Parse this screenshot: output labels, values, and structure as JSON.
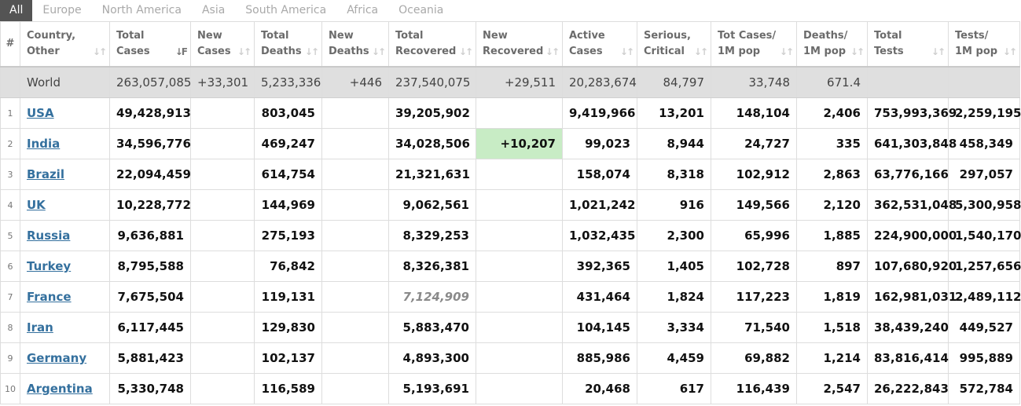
{
  "tabs": [
    "All",
    "Europe",
    "North America",
    "Asia",
    "South America",
    "Africa",
    "Oceania"
  ],
  "headers": [
    {
      "l1": "#",
      "l2": ""
    },
    {
      "l1": "Country,",
      "l2": "Other"
    },
    {
      "l1": "Total",
      "l2": "Cases"
    },
    {
      "l1": "New",
      "l2": "Cases"
    },
    {
      "l1": "Total",
      "l2": "Deaths"
    },
    {
      "l1": "New",
      "l2": "Deaths"
    },
    {
      "l1": "Total",
      "l2": "Recovered"
    },
    {
      "l1": "New",
      "l2": "Recovered"
    },
    {
      "l1": "Active",
      "l2": "Cases"
    },
    {
      "l1": "Serious,",
      "l2": "Critical"
    },
    {
      "l1": "Tot Cases/",
      "l2": "1M pop"
    },
    {
      "l1": "Deaths/",
      "l2": "1M pop"
    },
    {
      "l1": "Total",
      "l2": "Tests"
    },
    {
      "l1": "Tests/",
      "l2": "1M pop"
    }
  ],
  "world": {
    "country": "World",
    "total_cases": "263,057,085",
    "new_cases": "+33,301",
    "total_deaths": "5,233,336",
    "new_deaths": "+446",
    "total_recovered": "237,540,075",
    "new_recovered": "+29,511",
    "active_cases": "20,283,674",
    "serious_critical": "84,797",
    "cases_per_1m": "33,748",
    "deaths_per_1m": "671.4",
    "total_tests": "",
    "tests_per_1m": ""
  },
  "rows": [
    {
      "idx": "1",
      "country": "USA",
      "total_cases": "49,428,913",
      "new_cases": "",
      "total_deaths": "803,045",
      "new_deaths": "",
      "total_recovered": "39,205,902",
      "new_recovered": "",
      "active_cases": "9,419,966",
      "serious_critical": "13,201",
      "cases_per_1m": "148,104",
      "deaths_per_1m": "2,406",
      "total_tests": "753,993,369",
      "tests_per_1m": "2,259,195"
    },
    {
      "idx": "2",
      "country": "India",
      "total_cases": "34,596,776",
      "new_cases": "",
      "total_deaths": "469,247",
      "new_deaths": "",
      "total_recovered": "34,028,506",
      "new_recovered": "+10,207",
      "active_cases": "99,023",
      "serious_critical": "8,944",
      "cases_per_1m": "24,727",
      "deaths_per_1m": "335",
      "total_tests": "641,303,848",
      "tests_per_1m": "458,349"
    },
    {
      "idx": "3",
      "country": "Brazil",
      "total_cases": "22,094,459",
      "new_cases": "",
      "total_deaths": "614,754",
      "new_deaths": "",
      "total_recovered": "21,321,631",
      "new_recovered": "",
      "active_cases": "158,074",
      "serious_critical": "8,318",
      "cases_per_1m": "102,912",
      "deaths_per_1m": "2,863",
      "total_tests": "63,776,166",
      "tests_per_1m": "297,057"
    },
    {
      "idx": "4",
      "country": "UK",
      "total_cases": "10,228,772",
      "new_cases": "",
      "total_deaths": "144,969",
      "new_deaths": "",
      "total_recovered": "9,062,561",
      "new_recovered": "",
      "active_cases": "1,021,242",
      "serious_critical": "916",
      "cases_per_1m": "149,566",
      "deaths_per_1m": "2,120",
      "total_tests": "362,531,048",
      "tests_per_1m": "5,300,958"
    },
    {
      "idx": "5",
      "country": "Russia",
      "total_cases": "9,636,881",
      "new_cases": "",
      "total_deaths": "275,193",
      "new_deaths": "",
      "total_recovered": "8,329,253",
      "new_recovered": "",
      "active_cases": "1,032,435",
      "serious_critical": "2,300",
      "cases_per_1m": "65,996",
      "deaths_per_1m": "1,885",
      "total_tests": "224,900,000",
      "tests_per_1m": "1,540,170"
    },
    {
      "idx": "6",
      "country": "Turkey",
      "total_cases": "8,795,588",
      "new_cases": "",
      "total_deaths": "76,842",
      "new_deaths": "",
      "total_recovered": "8,326,381",
      "new_recovered": "",
      "active_cases": "392,365",
      "serious_critical": "1,405",
      "cases_per_1m": "102,728",
      "deaths_per_1m": "897",
      "total_tests": "107,680,920",
      "tests_per_1m": "1,257,656"
    },
    {
      "idx": "7",
      "country": "France",
      "total_cases": "7,675,504",
      "new_cases": "",
      "total_deaths": "119,131",
      "new_deaths": "",
      "total_recovered": "7,124,909",
      "new_recovered": "",
      "active_cases": "431,464",
      "serious_critical": "1,824",
      "cases_per_1m": "117,223",
      "deaths_per_1m": "1,819",
      "total_tests": "162,981,031",
      "tests_per_1m": "2,489,112"
    },
    {
      "idx": "8",
      "country": "Iran",
      "total_cases": "6,117,445",
      "new_cases": "",
      "total_deaths": "129,830",
      "new_deaths": "",
      "total_recovered": "5,883,470",
      "new_recovered": "",
      "active_cases": "104,145",
      "serious_critical": "3,334",
      "cases_per_1m": "71,540",
      "deaths_per_1m": "1,518",
      "total_tests": "38,439,240",
      "tests_per_1m": "449,527"
    },
    {
      "idx": "9",
      "country": "Germany",
      "total_cases": "5,881,423",
      "new_cases": "",
      "total_deaths": "102,137",
      "new_deaths": "",
      "total_recovered": "4,893,300",
      "new_recovered": "",
      "active_cases": "885,986",
      "serious_critical": "4,459",
      "cases_per_1m": "69,882",
      "deaths_per_1m": "1,214",
      "total_tests": "83,816,414",
      "tests_per_1m": "995,889"
    },
    {
      "idx": "10",
      "country": "Argentina",
      "total_cases": "5,330,748",
      "new_cases": "",
      "total_deaths": "116,589",
      "new_deaths": "",
      "total_recovered": "5,193,691",
      "new_recovered": "",
      "active_cases": "20,468",
      "serious_critical": "617",
      "cases_per_1m": "116,439",
      "deaths_per_1m": "2,547",
      "total_tests": "26,222,843",
      "tests_per_1m": "572,784"
    }
  ],
  "colors": {
    "tab_active_bg": "#545454",
    "world_row_bg": "#dfdfdf",
    "new_recovered_highlight": "#c8ecc5",
    "link": "#34709e"
  },
  "icons": {
    "sort": "sort-arrows-icon",
    "sorted_desc": "sort-desc-icon"
  }
}
